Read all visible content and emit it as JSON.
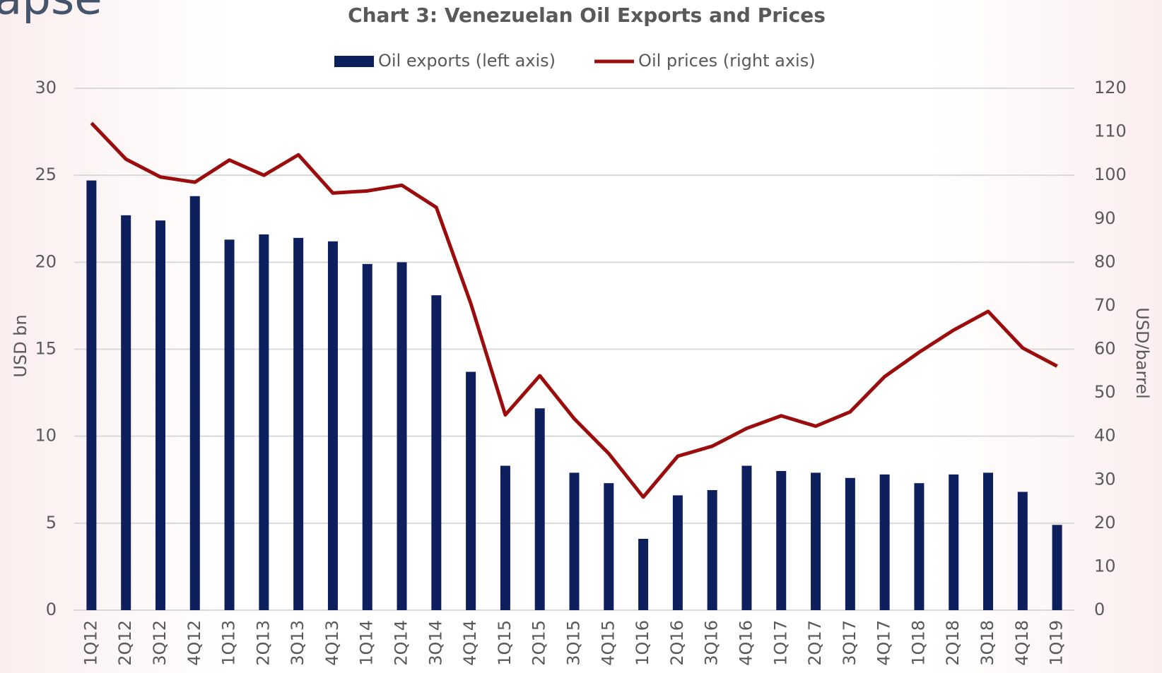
{
  "slide_title_fragment": "apse",
  "chart_data": {
    "type": "bar_line",
    "title": "Chart 3: Venezuelan Oil Exports and Prices",
    "y_label": "USD bn",
    "y2_label": "USD/barrel",
    "categories": [
      "1Q12",
      "2Q12",
      "3Q12",
      "4Q12",
      "1Q13",
      "2Q13",
      "3Q13",
      "4Q13",
      "1Q14",
      "2Q14",
      "3Q14",
      "4Q14",
      "1Q15",
      "2Q15",
      "3Q15",
      "4Q15",
      "1Q16",
      "2Q16",
      "3Q16",
      "4Q16",
      "1Q17",
      "2Q17",
      "3Q17",
      "4Q17",
      "1Q18",
      "2Q18",
      "3Q18",
      "4Q18",
      "1Q19"
    ],
    "series": [
      {
        "name": "Oil exports (left axis)",
        "type": "bar",
        "color": "#0d1f5c",
        "values": [
          24.7,
          22.7,
          22.4,
          23.8,
          21.3,
          21.6,
          21.4,
          21.2,
          19.9,
          20.0,
          18.1,
          13.7,
          8.3,
          11.6,
          7.9,
          7.3,
          4.1,
          6.6,
          6.9,
          8.3,
          8.0,
          7.9,
          7.6,
          7.8,
          7.3,
          7.8,
          7.9,
          6.8,
          4.9
        ]
      },
      {
        "name": "Oil prices (right axis)",
        "type": "line",
        "axis": "y2",
        "color": "#9b0d0d",
        "values": [
          112,
          103.7,
          99.6,
          98.4,
          103.5,
          100,
          104.7,
          95.9,
          96.4,
          97.7,
          92.6,
          70.5,
          44.9,
          53.9,
          44,
          36,
          26,
          35.4,
          37.7,
          41.8,
          44.7,
          42.3,
          45.6,
          53.7,
          59.3,
          64.4,
          68.7,
          60.3,
          56.1
        ]
      }
    ],
    "ylim": [
      0,
      30
    ],
    "yticks": [
      0,
      5,
      10,
      15,
      20,
      25,
      30
    ],
    "y2lim": [
      0,
      120
    ],
    "y2ticks": [
      0,
      10,
      20,
      30,
      40,
      50,
      60,
      70,
      80,
      90,
      100,
      110,
      120
    ],
    "grid": true,
    "legend": "top"
  }
}
